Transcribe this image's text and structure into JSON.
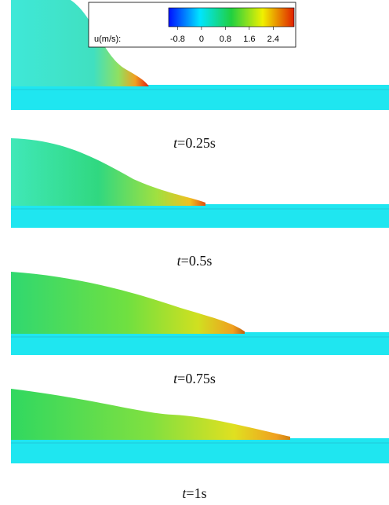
{
  "colorbar": {
    "label": "u(m/s):",
    "lim": [
      -1.1,
      3.1
    ],
    "ticks": [
      -0.8,
      0,
      0.8,
      1.6,
      2.4
    ],
    "colors": [
      "#0010ff",
      "#00e5ff",
      "#20d040",
      "#f0f000",
      "#e02000"
    ]
  },
  "panels": [
    {
      "caption": "t=0.25s"
    },
    {
      "caption": "t=0.5s"
    },
    {
      "caption": "t=0.75s"
    },
    {
      "caption": "t=1s"
    }
  ]
}
